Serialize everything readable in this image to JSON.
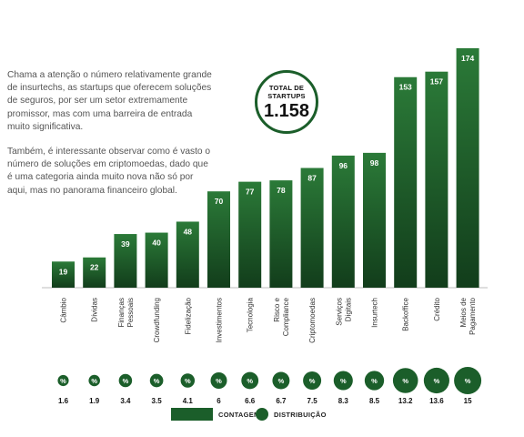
{
  "intro": {
    "paragraph1": "Chama a atenção o número relativamente grande de insurtechs, as startups que oferecem soluções de seguros, por ser um setor extremamente promissor, mas com uma barreira de entrada muito significativa.",
    "paragraph2": "Também, é interessante observar como é vasto o número de soluções em criptomoedas, dado que é uma categoria ainda muito nova não só por aqui, mas no panorama financeiro global."
  },
  "total": {
    "label_line1": "TOTAL DE",
    "label_line2": "STARTUPS",
    "value": "1.158"
  },
  "legend": {
    "bars": "CONTAGEM",
    "circles": "DISTRIBUIÇÃO"
  },
  "colors": {
    "bar_top": "#2b7a38",
    "bar_bottom": "#123d1b",
    "circle": "#1b5e2a",
    "text_dark": "#111111"
  },
  "chart_data": {
    "type": "bar",
    "categories": [
      [
        "Câmbio"
      ],
      [
        "Dívidas"
      ],
      [
        "Finanças",
        "Pessoais"
      ],
      [
        "Crowdfunding"
      ],
      [
        "Fidelização"
      ],
      [
        "Investimentos"
      ],
      [
        "Tecnologia"
      ],
      [
        "Risco e",
        "Compliance"
      ],
      [
        "Criptomoedas"
      ],
      [
        "Serviços",
        "Digitais"
      ],
      [
        "Insurtech"
      ],
      [
        "Backoffice"
      ],
      [
        "Crédito"
      ],
      [
        "Meios de",
        "Pagamento"
      ]
    ],
    "values": [
      19,
      22,
      39,
      40,
      48,
      70,
      77,
      78,
      87,
      96,
      98,
      153,
      157,
      174
    ],
    "distribution": [
      1.6,
      1.9,
      3.4,
      3.5,
      4.1,
      6,
      6.6,
      6.7,
      7.5,
      8.3,
      8.5,
      13.2,
      13.6,
      15
    ],
    "distribution_labels": [
      "1.6",
      "1.9",
      "3.4",
      "3.5",
      "4.1",
      "6",
      "6.6",
      "6.7",
      "7.5",
      "8.3",
      "8.5",
      "13.2",
      "13.6",
      "15"
    ],
    "circle_symbol": "%",
    "ylim": [
      0,
      174
    ]
  }
}
